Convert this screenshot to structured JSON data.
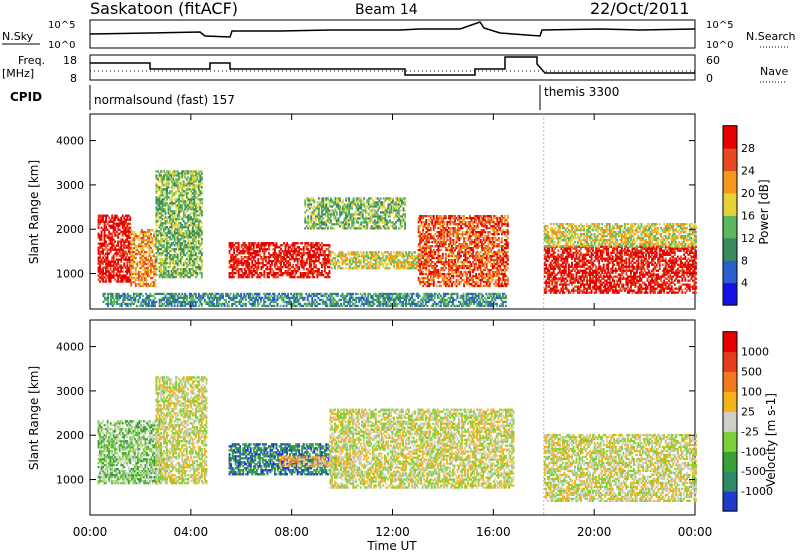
{
  "header": {
    "station": "Saskatoon (fitACF)",
    "beam": "Beam 14",
    "date": "22/Oct/2011"
  },
  "top_panels": {
    "nsky_label": "N.Sky",
    "nsky_ticks": [
      "10^5",
      "10^0"
    ],
    "nsearch_label": "N.Search",
    "nsearch_ticks": [
      "10^5",
      "10^0"
    ],
    "freq_label_line1": "Freq.",
    "freq_label_line2": "[MHz]",
    "freq_ticks": [
      "18",
      "8"
    ],
    "nave_label": "Nave",
    "nave_ticks": [
      "60",
      "0"
    ],
    "cpid_label": "CPID",
    "cpid_segments": [
      {
        "name": "normalsound (fast) 157",
        "start_h": 0,
        "end_h": 18
      },
      {
        "name": "themis 3300",
        "start_h": 18,
        "end_h": 24
      }
    ]
  },
  "chart_data": [
    {
      "type": "heatmap",
      "title": "",
      "xlabel": "",
      "ylabel": "Slant Range [km]",
      "xlim": [
        0,
        24
      ],
      "ylim": [
        200,
        4600
      ],
      "yticks": [
        "1000",
        "2000",
        "3000",
        "4000"
      ],
      "colorbar": {
        "label": "Power [dB]",
        "ticks": [
          "4",
          "8",
          "12",
          "16",
          "20",
          "24",
          "28"
        ],
        "colors": [
          "#1414e6",
          "#2a5fd0",
          "#3a8a60",
          "#5cb85c",
          "#e8d23a",
          "#f59a1e",
          "#e64a1e",
          "#e60000"
        ]
      },
      "echo_regions": [
        {
          "t0": 0.3,
          "t1": 1.6,
          "r0": 800,
          "r1": 2300,
          "level": 7
        },
        {
          "t0": 1.6,
          "t1": 2.6,
          "r0": 700,
          "r1": 2000,
          "level": 5
        },
        {
          "t0": 2.6,
          "t1": 4.4,
          "r0": 900,
          "r1": 3300,
          "level": 3
        },
        {
          "t0": 5.5,
          "t1": 9.5,
          "r0": 900,
          "r1": 1700,
          "level": 7
        },
        {
          "t0": 9.5,
          "t1": 13.0,
          "r0": 1100,
          "r1": 1500,
          "level": 4
        },
        {
          "t0": 8.5,
          "t1": 12.5,
          "r0": 2000,
          "r1": 2700,
          "level": 3
        },
        {
          "t0": 13.0,
          "t1": 16.6,
          "r0": 700,
          "r1": 2300,
          "level": 6
        },
        {
          "t0": 18.0,
          "t1": 24.0,
          "r0": 550,
          "r1": 1600,
          "level": 7
        },
        {
          "t0": 18.0,
          "t1": 24.0,
          "r0": 1600,
          "r1": 2100,
          "level": 4
        },
        {
          "t0": 0.5,
          "t1": 16.5,
          "r0": 250,
          "r1": 550,
          "level": 2
        }
      ]
    },
    {
      "type": "heatmap",
      "title": "",
      "xlabel": "Time UT",
      "ylabel": "Slant Range [km]",
      "xlim": [
        0,
        24
      ],
      "ylim": [
        200,
        4600
      ],
      "yticks": [
        "1000",
        "2000",
        "3000",
        "4000"
      ],
      "xticks": [
        "00:00",
        "04:00",
        "08:00",
        "12:00",
        "16:00",
        "20:00",
        "00:00"
      ],
      "colorbar": {
        "label": "Velocity [m s-1]",
        "ticks": [
          "1000",
          "500",
          "100",
          "25",
          "-25",
          "-100",
          "-500",
          "-1000"
        ],
        "colors": [
          "#1e3cc8",
          "#2a8a6a",
          "#3aa03a",
          "#7cd23a",
          "#cfcfc8",
          "#f5b41e",
          "#f57a1e",
          "#e63c1e",
          "#e60000"
        ]
      },
      "echo_regions": [
        {
          "t0": 0.3,
          "t1": 2.8,
          "r0": 900,
          "r1": 2300,
          "level": 3
        },
        {
          "t0": 2.6,
          "t1": 4.6,
          "r0": 900,
          "r1": 3300,
          "level": 4
        },
        {
          "t0": 5.5,
          "t1": 9.5,
          "r0": 1100,
          "r1": 1800,
          "level": 1
        },
        {
          "t0": 7.5,
          "t1": 10.5,
          "r0": 1300,
          "r1": 1500,
          "level": 5
        },
        {
          "t0": 9.5,
          "t1": 16.8,
          "r0": 800,
          "r1": 2600,
          "level": 4
        },
        {
          "t0": 18.0,
          "t1": 24.0,
          "r0": 500,
          "r1": 2000,
          "level": 4
        }
      ]
    }
  ]
}
